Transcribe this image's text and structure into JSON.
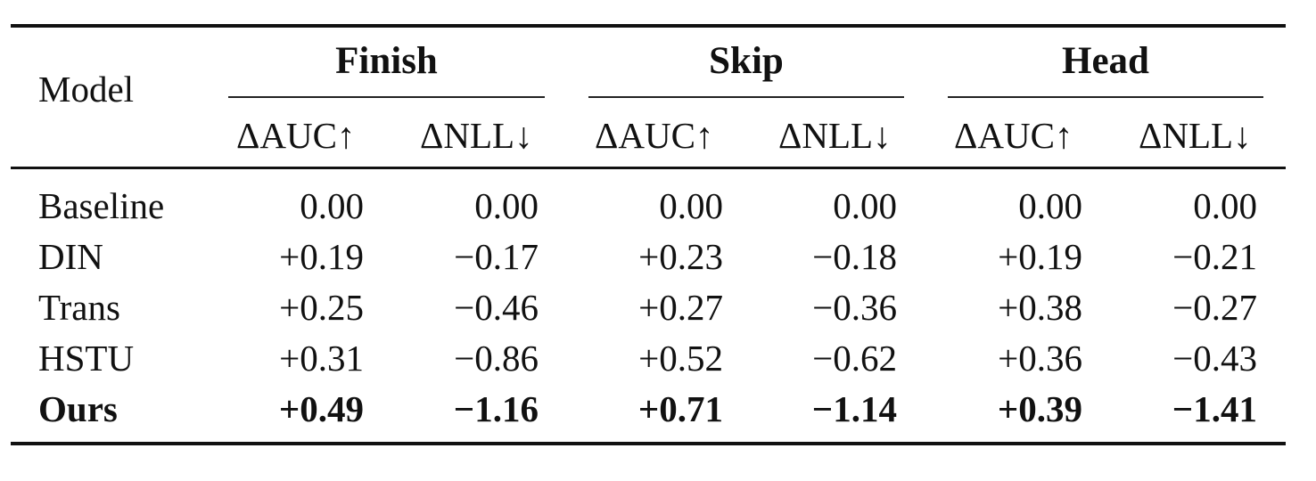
{
  "table": {
    "model_header": "Model",
    "groups": [
      {
        "label": "Finish",
        "cols": [
          "ΔAUC↑",
          "ΔNLL↓"
        ]
      },
      {
        "label": "Skip",
        "cols": [
          "ΔAUC↑",
          "ΔNLL↓"
        ]
      },
      {
        "label": "Head",
        "cols": [
          "ΔAUC↑",
          "ΔNLL↓"
        ]
      }
    ],
    "rows": [
      {
        "model": "Baseline",
        "bold": false,
        "values": [
          "0.00",
          "0.00",
          "0.00",
          "0.00",
          "0.00",
          "0.00"
        ]
      },
      {
        "model": "DIN",
        "bold": false,
        "values": [
          "+0.19",
          "−0.17",
          "+0.23",
          "−0.18",
          "+0.19",
          "−0.21"
        ]
      },
      {
        "model": "Trans",
        "bold": false,
        "values": [
          "+0.25",
          "−0.46",
          "+0.27",
          "−0.36",
          "+0.38",
          "−0.27"
        ]
      },
      {
        "model": "HSTU",
        "bold": false,
        "values": [
          "+0.31",
          "−0.86",
          "+0.52",
          "−0.62",
          "+0.36",
          "−0.43"
        ]
      },
      {
        "model": "Ours",
        "bold": true,
        "values": [
          "+0.49",
          "−1.16",
          "+0.71",
          "−1.14",
          "+0.39",
          "−1.41"
        ]
      }
    ]
  }
}
